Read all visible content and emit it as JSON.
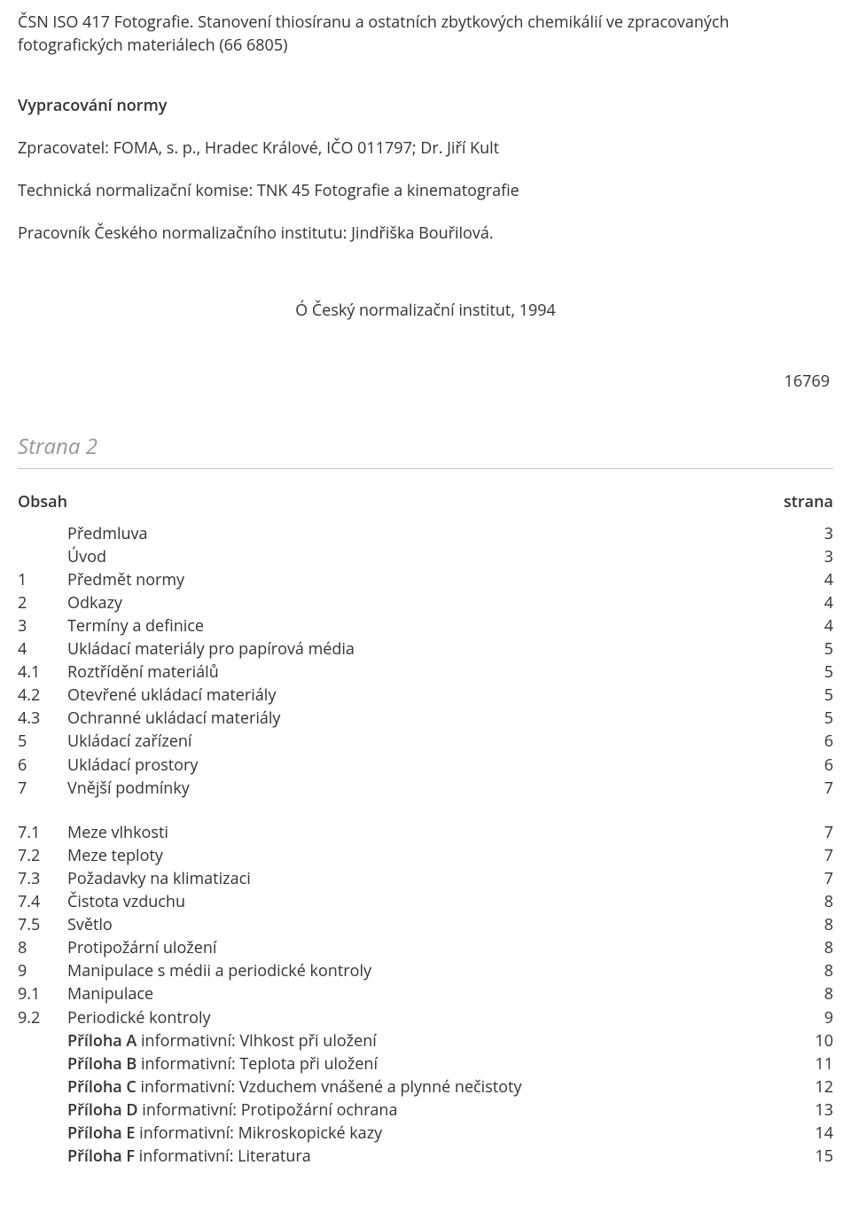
{
  "header": {
    "ref_line": "ČSN ISO 417   Fotografie. Stanovení thiosíranu a ostatních zbytkových chemikálií ve zpracovaných fotografických materiálech (66 6805)",
    "section_title": "Vypracování normy",
    "author_line": "Zpracovatel: FOMA, s. p., Hradec Králové, IČO 011797; Dr. Jiří Kult",
    "committee_line": "Technická normalizační komise: TNK 45 Fotografie a kinematografie",
    "institute_line": "Pracovník Českého normalizačního institutu: Jindřiška Bouřilová.",
    "copyright_line": "Ó Český normalizační institut, 1994",
    "code_number": "16769"
  },
  "page2": {
    "label": "Strana 2",
    "obsah": "Obsah",
    "strana": "strana"
  },
  "toc1": [
    {
      "n": "",
      "t": "Předmluva",
      "p": "3"
    },
    {
      "n": "",
      "t": "Úvod",
      "p": "3"
    },
    {
      "n": "1",
      "t": "Předmět normy",
      "p": "4"
    },
    {
      "n": "2",
      "t": "Odkazy",
      "p": "4"
    },
    {
      "n": "3",
      "t": "Termíny a definice",
      "p": "4"
    },
    {
      "n": "4",
      "t": "Ukládací materiály pro papírová média",
      "p": "5"
    },
    {
      "n": "4.1",
      "t": "Roztřídění materiálů",
      "p": "5"
    },
    {
      "n": "4.2",
      "t": "Otevřené ukládací materiály",
      "p": "5"
    },
    {
      "n": "4.3",
      "t": "Ochranné ukládací materiály",
      "p": "5"
    },
    {
      "n": "5",
      "t": "Ukládací zařízení",
      "p": "6"
    },
    {
      "n": "6",
      "t": "Ukládací prostory",
      "p": "6"
    },
    {
      "n": "7",
      "t": "Vnější podmínky",
      "p": "7"
    }
  ],
  "toc2": [
    {
      "n": "7.1",
      "t": "Meze vlhkosti",
      "p": "7"
    },
    {
      "n": "7.2",
      "t": "Meze teploty",
      "p": "7"
    },
    {
      "n": "7.3",
      "t": "Požadavky na klimatizaci",
      "p": "7"
    },
    {
      "n": "7.4",
      "t": "Čistota vzduchu",
      "p": "8"
    },
    {
      "n": "7.5",
      "t": "Světlo",
      "p": "8"
    },
    {
      "n": "8",
      "t": "Protipožární uložení",
      "p": "8"
    },
    {
      "n": "9",
      "t": "Manipulace s médii a periodické kontroly",
      "p": "8"
    },
    {
      "n": "9.1",
      "t": "Manipulace",
      "p": "8"
    },
    {
      "n": "9.2",
      "t": "Periodické kontroly",
      "p": "9"
    },
    {
      "n": "",
      "pre": "Příloha A",
      "t": " informativní: Vlhkost při uložení",
      "p": "10"
    },
    {
      "n": "",
      "pre": "Příloha B",
      "t": " informativní: Teplota při uložení",
      "p": "11"
    },
    {
      "n": "",
      "pre": "Příloha C",
      "t": " informativní: Vzduchem vnášené a plynné nečistoty",
      "p": "12"
    },
    {
      "n": "",
      "pre": "Příloha D",
      "t": " informativní: Protipožární ochrana",
      "p": "13"
    },
    {
      "n": "",
      "pre": "Příloha E",
      "t": " informativní: Mikroskopické kazy",
      "p": "14"
    },
    {
      "n": "",
      "pre": "Příloha F",
      "t": " informativní: Literatura",
      "p": "15"
    }
  ]
}
